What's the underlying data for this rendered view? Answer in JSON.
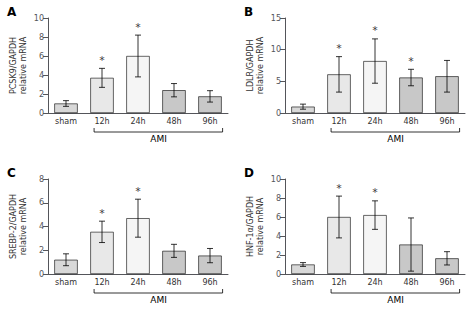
{
  "chart_data": [
    {
      "type": "bar",
      "title": "A",
      "ylabel": "PCSK9/GAPDH\nrelative mRNA",
      "xlabel": "AMI",
      "categories": [
        "sham",
        "12h",
        "24h",
        "48h",
        "96h"
      ],
      "values": [
        1.0,
        3.7,
        6.0,
        2.4,
        1.75
      ],
      "errors": [
        0.3,
        1.0,
        2.2,
        0.7,
        0.6
      ],
      "colors": [
        "#d8d8d8",
        "#e8e8e8",
        "#f5f5f5",
        "#c8c8c8",
        "#c8c8c8"
      ],
      "ylim": [
        0,
        10
      ],
      "yticks": [
        0,
        2,
        4,
        6,
        8,
        10
      ],
      "grid": false,
      "annotations": [
        {
          "x": "12h",
          "text": "*"
        },
        {
          "x": "24h",
          "text": "*"
        }
      ]
    },
    {
      "type": "bar",
      "title": "B",
      "ylabel": "LDLR/GAPDH\nrelative mRNA",
      "xlabel": "AMI",
      "categories": [
        "sham",
        "12h",
        "24h",
        "48h",
        "96h"
      ],
      "values": [
        1.0,
        6.1,
        8.2,
        5.6,
        5.8
      ],
      "errors": [
        0.4,
        2.8,
        3.5,
        1.3,
        2.5
      ],
      "colors": [
        "#d8d8d8",
        "#e8e8e8",
        "#f5f5f5",
        "#c8c8c8",
        "#c8c8c8"
      ],
      "ylim": [
        0,
        15
      ],
      "yticks": [
        0,
        5,
        10,
        15
      ],
      "grid": false,
      "annotations": [
        {
          "x": "12h",
          "text": "*"
        },
        {
          "x": "24h",
          "text": "*"
        },
        {
          "x": "48h",
          "text": "*"
        }
      ]
    },
    {
      "type": "bar",
      "title": "C",
      "ylabel": "SREBP-2/GAPDH\nrelative mRNA",
      "xlabel": "AMI",
      "categories": [
        "sham",
        "12h",
        "24h",
        "48h",
        "96h"
      ],
      "values": [
        1.2,
        3.55,
        4.7,
        1.95,
        1.55
      ],
      "errors": [
        0.5,
        0.9,
        1.6,
        0.55,
        0.6
      ],
      "colors": [
        "#d8d8d8",
        "#e8e8e8",
        "#f5f5f5",
        "#c8c8c8",
        "#c8c8c8"
      ],
      "ylim": [
        0,
        8
      ],
      "yticks": [
        0,
        2,
        4,
        6,
        8
      ],
      "grid": false,
      "annotations": [
        {
          "x": "12h",
          "text": "*"
        },
        {
          "x": "24h",
          "text": "*"
        }
      ]
    },
    {
      "type": "bar",
      "title": "D",
      "ylabel": "HNF-1α/GAPDH\nrelative mRNA",
      "xlabel": "AMI",
      "categories": [
        "sham",
        "12h",
        "24h",
        "48h",
        "96h"
      ],
      "values": [
        1.0,
        6.0,
        6.2,
        3.1,
        1.65
      ],
      "errors": [
        0.2,
        2.2,
        1.5,
        2.8,
        0.7
      ],
      "colors": [
        "#d8d8d8",
        "#e8e8e8",
        "#f5f5f5",
        "#c8c8c8",
        "#c8c8c8"
      ],
      "ylim": [
        0,
        10
      ],
      "yticks": [
        0,
        2,
        4,
        6,
        8,
        10
      ],
      "grid": false,
      "annotations": [
        {
          "x": "12h",
          "text": "*"
        },
        {
          "x": "24h",
          "text": "*"
        }
      ]
    }
  ]
}
